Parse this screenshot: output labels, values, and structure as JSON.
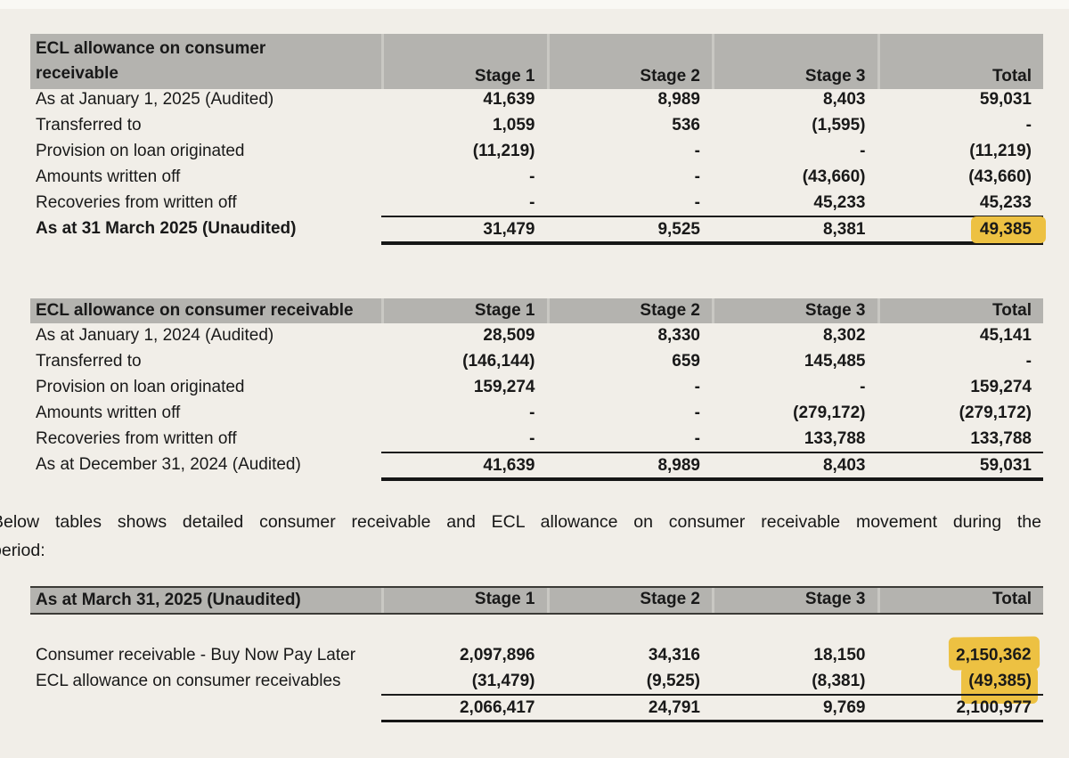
{
  "styles": {
    "highlight_color": "#edc142",
    "header_band_color": "#b4b3af",
    "page_background": "#f1eee8"
  },
  "table1": {
    "title": "ECL allowance on consumer receivable",
    "columns": [
      "Stage 1",
      "Stage 2",
      "Stage 3",
      "Total"
    ],
    "rows": [
      {
        "label": "As at January 1, 2025 (Audited)",
        "values": [
          "41,639",
          "8,989",
          "8,403",
          "59,031"
        ]
      },
      {
        "label": "Transferred to",
        "values": [
          "1,059",
          "536",
          "(1,595)",
          "-"
        ]
      },
      {
        "label": "Provision on loan originated",
        "values": [
          "(11,219)",
          "-",
          "-",
          "(11,219)"
        ]
      },
      {
        "label": "Amounts written off",
        "values": [
          "-",
          "-",
          "(43,660)",
          "(43,660)"
        ]
      },
      {
        "label": "Recoveries from written off",
        "values": [
          "-",
          "-",
          "45,233",
          "45,233"
        ]
      },
      {
        "label": "As at 31 March 2025 (Unaudited)",
        "values": [
          "31,479",
          "9,525",
          "8,381",
          "49,385"
        ]
      }
    ]
  },
  "table2": {
    "title": "ECL allowance on consumer receivable",
    "columns": [
      "Stage 1",
      "Stage 2",
      "Stage 3",
      "Total"
    ],
    "rows": [
      {
        "label": "As at January 1, 2024 (Audited)",
        "values": [
          "28,509",
          "8,330",
          "8,302",
          "45,141"
        ]
      },
      {
        "label": "Transferred to",
        "values": [
          "(146,144)",
          "659",
          "145,485",
          "-"
        ]
      },
      {
        "label": "Provision on loan originated",
        "values": [
          "159,274",
          "-",
          "-",
          "159,274"
        ]
      },
      {
        "label": "Amounts written off",
        "values": [
          "-",
          "-",
          "(279,172)",
          "(279,172)"
        ]
      },
      {
        "label": "Recoveries from written off",
        "values": [
          "-",
          "-",
          "133,788",
          "133,788"
        ]
      },
      {
        "label": "As at December 31, 2024 (Audited)",
        "values": [
          "41,639",
          "8,989",
          "8,403",
          "59,031"
        ]
      }
    ]
  },
  "paragraph": {
    "line1": "Below tables shows detailed consumer receivable and ECL allowance on consumer receivable movement during the",
    "line2": "period:"
  },
  "table3": {
    "title": "As at March 31, 2025 (Unaudited)",
    "columns": [
      "Stage 1",
      "Stage 2",
      "Stage 3",
      "Total"
    ],
    "rows": [
      {
        "label": "Consumer receivable - Buy Now Pay Later",
        "values": [
          "2,097,896",
          "34,316",
          "18,150",
          "2,150,362"
        ]
      },
      {
        "label": "ECL allowance on consumer receivables",
        "values": [
          "(31,479)",
          "(9,525)",
          "(8,381)",
          "(49,385)"
        ]
      },
      {
        "label": "",
        "values": [
          "2,066,417",
          "24,791",
          "9,769",
          "2,100,977"
        ]
      }
    ]
  }
}
